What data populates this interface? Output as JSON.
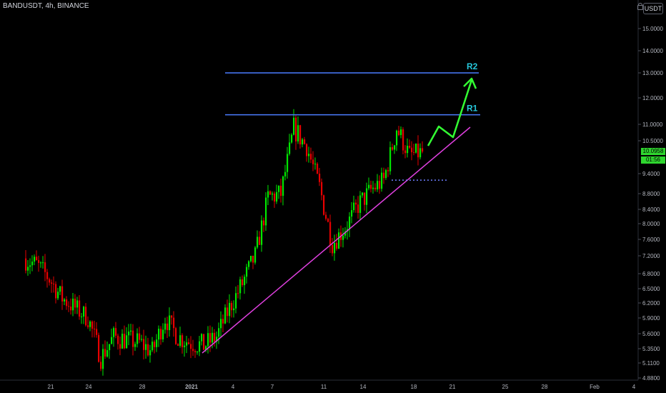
{
  "header": {
    "symbol_title": "BANDUSDT, 4h, BINANCE",
    "currency_button": "USDT"
  },
  "price_tag": {
    "price": "10.0958",
    "countdown": "01:56",
    "color": "#2fd62f"
  },
  "colors": {
    "background": "#000000",
    "up_candle": "#00e600",
    "down_candle": "#e60000",
    "resistance_line": "#4a7cff",
    "resistance_label": "#26c6da",
    "trendline": "#e040e0",
    "projection_arrow": "#33ff33",
    "support_dots": "#6f7fff",
    "axis_text": "#b2b5be"
  },
  "chart_data": {
    "type": "candlestick",
    "scale": "log",
    "y_ticks": [
      "15.0000",
      "14.0000",
      "13.0000",
      "12.0000",
      "11.0000",
      "10.5000",
      "9.4000",
      "8.8000",
      "8.4000",
      "8.0000",
      "7.6000",
      "7.2000",
      "6.8000",
      "6.5000",
      "6.2000",
      "5.9000",
      "5.6000",
      "5.3500",
      "5.1100",
      "4.8800"
    ],
    "x_ticks": [
      "21",
      "24",
      "28",
      "2021",
      "4",
      "7",
      "11",
      "14",
      "18",
      "21",
      "25",
      "28",
      "Feb",
      "4"
    ],
    "ylim": [
      4.85,
      15.6
    ],
    "price_closes_per_day": {
      "dates": [
        "Dec 19",
        "Dec 20",
        "Dec 21",
        "Dec 22",
        "Dec 23",
        "Dec 24",
        "Dec 25",
        "Dec 26",
        "Dec 27",
        "Dec 28",
        "Dec 29",
        "Dec 30",
        "Dec 31",
        "Jan 1",
        "Jan 2",
        "Jan 3",
        "Jan 4",
        "Jan 5",
        "Jan 6",
        "Jan 7",
        "Jan 8",
        "Jan 9",
        "Jan 10",
        "Jan 11",
        "Jan 12",
        "Jan 13",
        "Jan 14",
        "Jan 15",
        "Jan 16",
        "Jan 17",
        "Jan 18"
      ],
      "values": [
        7.0,
        6.7,
        6.3,
        6.1,
        5.9,
        5.2,
        5.55,
        5.5,
        5.45,
        5.3,
        5.9,
        5.55,
        5.45,
        5.4,
        5.55,
        6.1,
        6.6,
        7.2,
        8.7,
        8.8,
        10.9,
        10.3,
        9.0,
        7.5,
        7.9,
        8.5,
        8.9,
        9.2,
        10.9,
        10.0,
        10.1
      ]
    },
    "annotations": [
      {
        "label": "R1",
        "price": 11.35,
        "type": "horizontal resistance"
      },
      {
        "label": "R2",
        "price": 13.0,
        "type": "horizontal resistance"
      },
      {
        "label": "",
        "type": "ascending trendline",
        "from": {
          "date": "Jan 2",
          "price": 5.3
        },
        "to": {
          "date": "Jan 23",
          "price": 10.9
        }
      },
      {
        "label": "",
        "type": "support dotted line",
        "price": 9.2
      },
      {
        "label": "",
        "type": "projection arrow",
        "path_prices": [
          10.35,
          11.1,
          10.6,
          12.8
        ]
      }
    ]
  }
}
